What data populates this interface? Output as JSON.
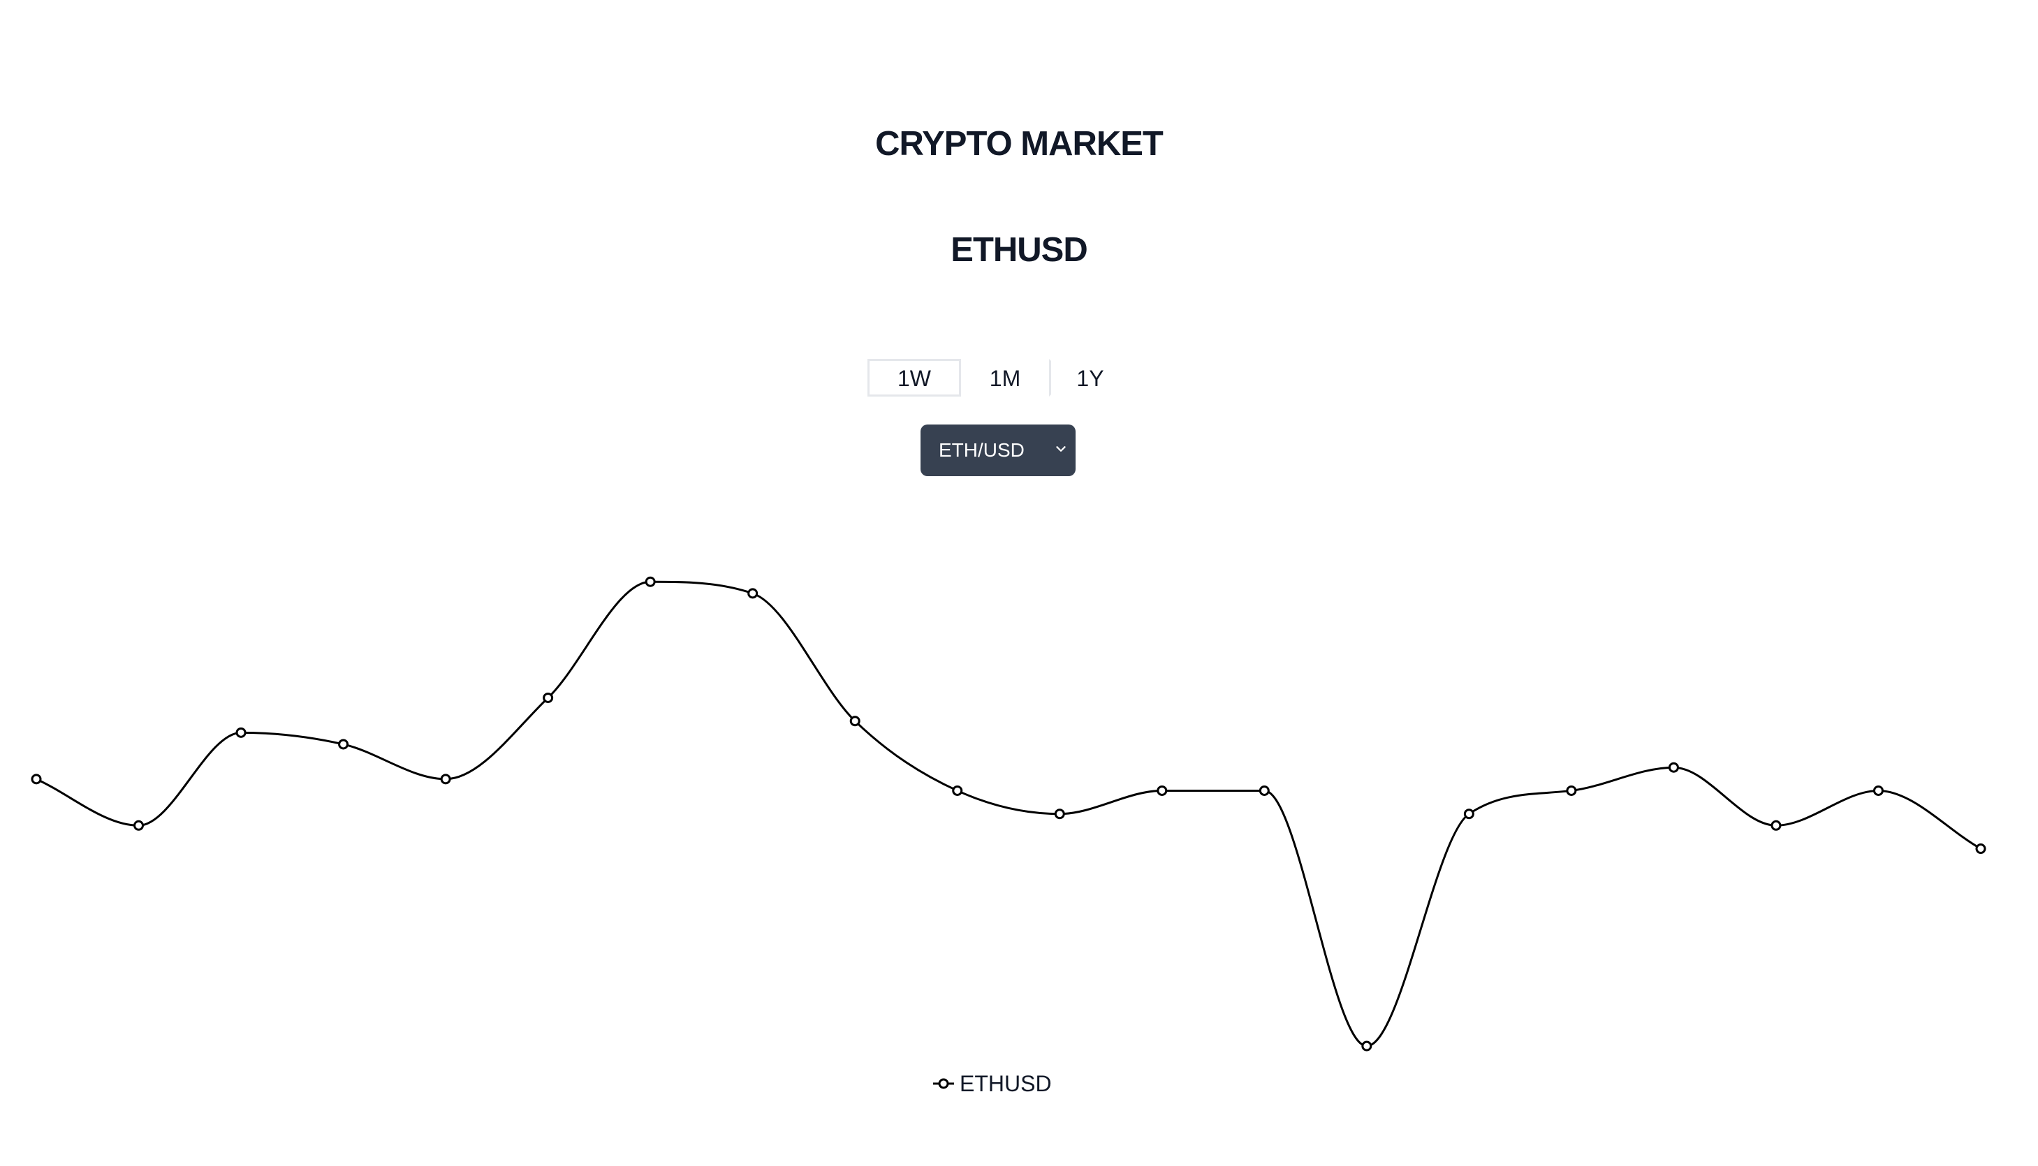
{
  "header": {
    "title": "CRYPTO MARKET",
    "pair": "ETHUSD"
  },
  "range_tabs": [
    {
      "label": "1W",
      "active": true
    },
    {
      "label": "1M",
      "active": false
    },
    {
      "label": "1Y",
      "active": false
    }
  ],
  "pair_select": {
    "value": "ETH/USD"
  },
  "legend": {
    "label": "ETHUSD"
  },
  "colors": {
    "line": "#000000",
    "select_bg": "#374151",
    "text": "#111827"
  },
  "chart_data": {
    "type": "line",
    "series": [
      {
        "name": "ETHUSD",
        "values": [
          14,
          10,
          18,
          17,
          14,
          21,
          31,
          30,
          19,
          13,
          11,
          13,
          13,
          -9,
          11,
          13,
          15,
          10,
          13,
          8
        ]
      }
    ],
    "ylim": [
      -12,
      33
    ],
    "grid": false,
    "legend_position": "bottom-center"
  }
}
